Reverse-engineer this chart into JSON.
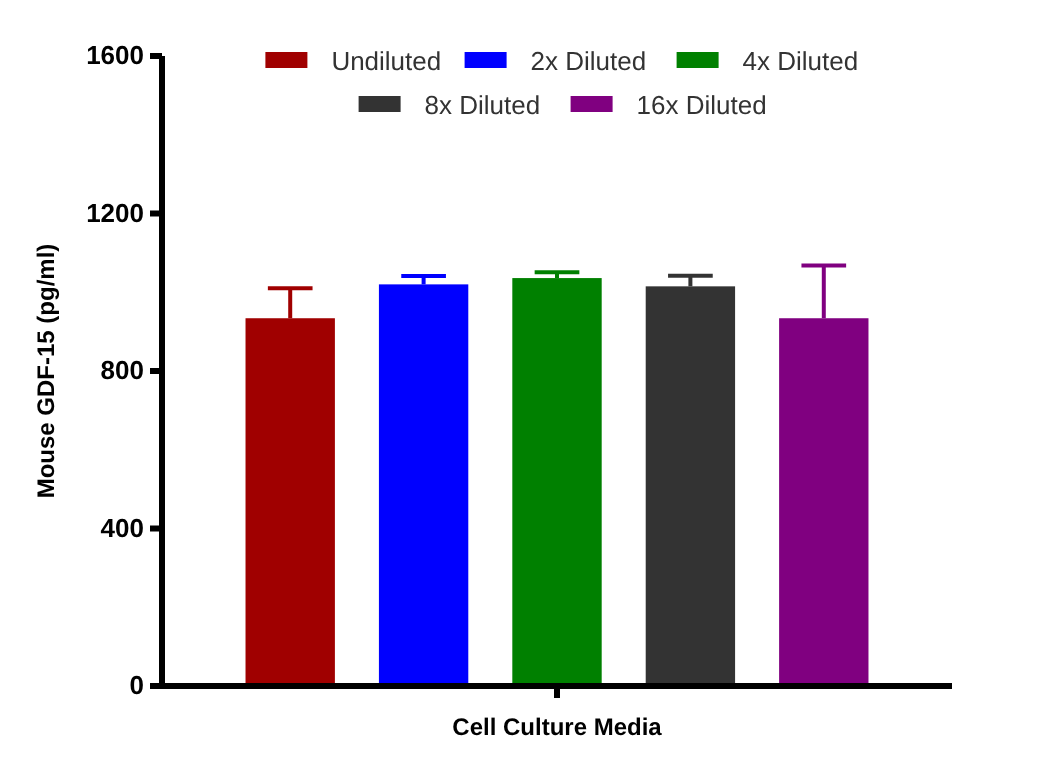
{
  "chart_data": {
    "type": "bar",
    "ylabel": "Mouse GDF-15 (pg/ml)",
    "categories": [
      "Cell Culture Media"
    ],
    "ylim": [
      0,
      1600
    ],
    "yticks": [
      0,
      400,
      800,
      1200,
      1600
    ],
    "legend": "top",
    "grid": false,
    "series": [
      {
        "name": "Undiluted",
        "color": "#a00000",
        "values": [
          934
        ],
        "errors": [
          [
            934,
            1010
          ]
        ]
      },
      {
        "name": "2x Diluted",
        "color": "#0000ff",
        "values": [
          1020
        ],
        "errors": [
          [
            1020,
            1041
          ]
        ]
      },
      {
        "name": "4x Diluted",
        "color": "#008000",
        "values": [
          1036
        ],
        "errors": [
          [
            1036,
            1051
          ]
        ]
      },
      {
        "name": "8x Diluted",
        "color": "#333333",
        "values": [
          1015
        ],
        "errors": [
          [
            1015,
            1042
          ]
        ]
      },
      {
        "name": "16x Diluted",
        "color": "#800080",
        "values": [
          934
        ],
        "errors": [
          [
            934,
            1068
          ]
        ]
      }
    ]
  }
}
